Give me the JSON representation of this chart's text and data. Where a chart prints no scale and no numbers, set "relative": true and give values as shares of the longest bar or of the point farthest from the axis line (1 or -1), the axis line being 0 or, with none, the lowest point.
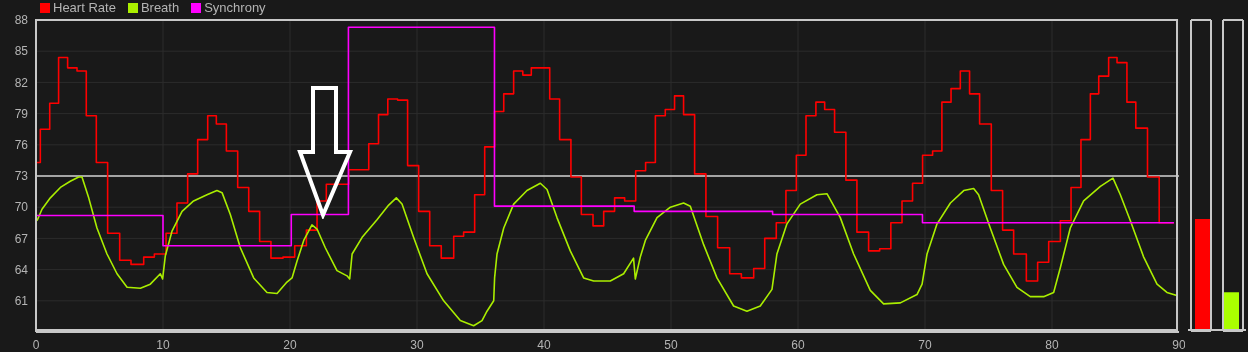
{
  "chart_data": [
    {
      "type": "line",
      "xlim": [
        0,
        90
      ],
      "xticks": [
        0,
        10,
        20,
        30,
        40,
        50,
        60,
        70,
        80,
        90
      ],
      "ylim": [
        58,
        88
      ],
      "yticks": [
        61,
        64,
        67,
        70,
        73,
        76,
        79,
        82,
        85,
        88
      ],
      "grid": true,
      "legend": "top left",
      "ref_lines": [
        {
          "axis": "y",
          "value": 73,
          "color": "#d0d0d0"
        }
      ],
      "series": [
        {
          "name": "Heart Rate",
          "type": "step",
          "color": "#ff0000",
          "x": [
            0,
            0.34,
            1.08,
            1.78,
            2.49,
            3.23,
            3.96,
            4.75,
            5.64,
            6.59,
            7.48,
            8.48,
            9.32,
            10.24,
            11.1,
            11.94,
            12.73,
            13.52,
            14.2,
            14.99,
            15.88,
            16.75,
            17.61,
            18.5,
            19.45,
            20.37,
            21.29,
            22.13,
            22.86,
            24.62,
            26.2,
            26.97,
            27.7,
            28.47,
            29.26,
            30.13,
            31.0,
            31.91,
            32.89,
            33.67,
            34.54,
            35.33,
            36.11,
            36.83,
            37.61,
            38.33,
            39.0,
            40.45,
            41.23,
            42.12,
            42.94,
            43.86,
            44.7,
            45.56,
            46.35,
            47.22,
            48.0,
            48.77,
            49.55,
            50.28,
            50.99,
            51.86,
            52.75,
            53.67,
            54.62,
            55.54,
            56.51,
            57.38,
            58.29,
            59.05,
            59.87,
            60.63,
            61.41,
            62.1,
            62.88,
            63.77,
            64.64,
            65.56,
            66.43,
            67.31,
            68.19,
            69.02,
            69.81,
            70.6,
            71.33,
            72.05,
            72.78,
            73.51,
            74.3,
            75.22,
            76.11,
            76.98,
            77.98,
            78.87,
            79.74,
            80.66,
            81.5,
            82.28,
            83.02,
            83.68,
            84.46,
            85.12,
            85.9,
            86.6,
            87.52,
            88.44,
            89.6
          ],
          "values": [
            74.3,
            77.5,
            80.0,
            84.4,
            83.4,
            83.1,
            78.8,
            74.3,
            67.5,
            64.9,
            64.5,
            65.2,
            65.5,
            67.5,
            70.4,
            73.2,
            76.5,
            78.8,
            78.0,
            75.4,
            71.9,
            69.6,
            66.7,
            65.1,
            65.2,
            66.3,
            67.8,
            70.6,
            72.2,
            73.6,
            76.1,
            78.9,
            80.4,
            80.3,
            74.0,
            69.6,
            66.3,
            65.1,
            67.2,
            67.6,
            71.2,
            75.8,
            79.2,
            80.9,
            83.1,
            82.7,
            83.4,
            80.4,
            76.5,
            72.9,
            69.3,
            68.2,
            69.6,
            70.9,
            70.6,
            73.5,
            74.3,
            78.8,
            79.4,
            80.7,
            78.9,
            73.2,
            69.1,
            66.1,
            63.6,
            63.2,
            64.1,
            67.0,
            68.5,
            71.6,
            75.0,
            78.8,
            80.1,
            79.4,
            77.2,
            72.6,
            67.6,
            65.8,
            66.0,
            68.5,
            70.6,
            72.3,
            75.0,
            75.4,
            80.1,
            81.4,
            83.1,
            80.9,
            78.0,
            71.6,
            67.8,
            65.5,
            62.9,
            64.7,
            66.7,
            68.7,
            71.9,
            76.5,
            80.9,
            82.6,
            84.4,
            83.9,
            80.1,
            77.6,
            72.9,
            68.5,
            68.5
          ]
        },
        {
          "name": "Breath",
          "type": "line",
          "color": "#aaee00",
          "x": [
            0.08,
            0.47,
            1.13,
            1.92,
            2.7,
            3.36,
            3.62,
            4.15,
            4.8,
            5.59,
            6.38,
            7.17,
            8.22,
            9.0,
            9.79,
            9.97,
            10.18,
            10.71,
            11.5,
            12.41,
            13.46,
            14.25,
            14.65,
            15.3,
            16.09,
            17.14,
            18.19,
            18.98,
            19.76,
            20.16,
            20.55,
            21.08,
            21.73,
            22.13,
            22.78,
            23.7,
            24.49,
            24.7,
            24.89,
            25.68,
            26.85,
            27.77,
            28.37,
            28.82,
            29.73,
            30.79,
            32.1,
            33.41,
            34.46,
            35.12,
            35.51,
            36.04,
            36.11,
            36.3,
            36.83,
            37.61,
            38.66,
            39.71,
            40.24,
            41.02,
            42.07,
            43.12,
            43.91,
            45.22,
            46.27,
            47.05,
            47.19,
            47.58,
            47.98,
            48.9,
            49.95,
            50.99,
            51.52,
            52.57,
            53.62,
            54.93,
            55.98,
            57.03,
            57.95,
            58.34,
            59.13,
            60.18,
            61.49,
            62.28,
            63.33,
            64.38,
            65.69,
            66.74,
            68.06,
            69.37,
            69.77,
            70.16,
            70.95,
            72.0,
            73.05,
            73.83,
            74.22,
            75.14,
            76.19,
            77.24,
            78.29,
            79.34,
            80.13,
            80.66,
            81.44,
            82.49,
            83.81,
            84.8,
            85.38,
            86.17,
            87.22,
            88.27,
            89.05,
            89.83
          ],
          "values": [
            68.7,
            69.8,
            70.9,
            71.9,
            72.5,
            72.9,
            72.9,
            70.9,
            68.0,
            65.5,
            63.6,
            62.3,
            62.2,
            62.6,
            63.6,
            63.1,
            65.3,
            67.7,
            69.6,
            70.6,
            71.2,
            71.6,
            71.4,
            69.3,
            66.1,
            63.2,
            61.8,
            61.7,
            62.8,
            63.2,
            64.8,
            66.8,
            68.3,
            67.9,
            66.1,
            63.9,
            63.4,
            63.1,
            65.5,
            67.1,
            68.8,
            70.2,
            70.9,
            70.3,
            67.1,
            63.6,
            61.0,
            59.1,
            58.6,
            59.1,
            60.0,
            61.0,
            63.2,
            65.5,
            68.0,
            70.3,
            71.6,
            72.3,
            71.7,
            69.0,
            65.8,
            63.2,
            62.9,
            62.9,
            63.6,
            65.1,
            63.1,
            65.2,
            66.8,
            69.0,
            70.0,
            70.4,
            70.1,
            66.4,
            63.2,
            60.5,
            60.0,
            60.5,
            62.1,
            65.5,
            68.4,
            70.3,
            71.2,
            71.3,
            69.0,
            65.5,
            62.0,
            60.7,
            60.8,
            61.6,
            62.6,
            65.5,
            68.4,
            70.4,
            71.6,
            71.8,
            71.2,
            68.0,
            64.5,
            62.3,
            61.4,
            61.4,
            61.8,
            64.2,
            68.0,
            70.6,
            72.0,
            72.8,
            71.2,
            68.7,
            65.2,
            62.6,
            61.8,
            61.5
          ]
        },
        {
          "name": "Synchrony",
          "type": "step",
          "color": "#ff00ff",
          "x": [
            0,
            10,
            20.1,
            24.6,
            36.1,
            47.1,
            58,
            69.8,
            89.6
          ],
          "values": [
            69.2,
            66.3,
            69.3,
            87.3,
            70.1,
            69.6,
            69.3,
            68.5,
            68.5
          ]
        }
      ]
    },
    {
      "type": "bar",
      "relative": true,
      "categories": [
        null,
        null
      ],
      "values": [
        1,
        0.34
      ],
      "colors": [
        "#ff0000",
        "#aaff00"
      ]
    }
  ]
}
